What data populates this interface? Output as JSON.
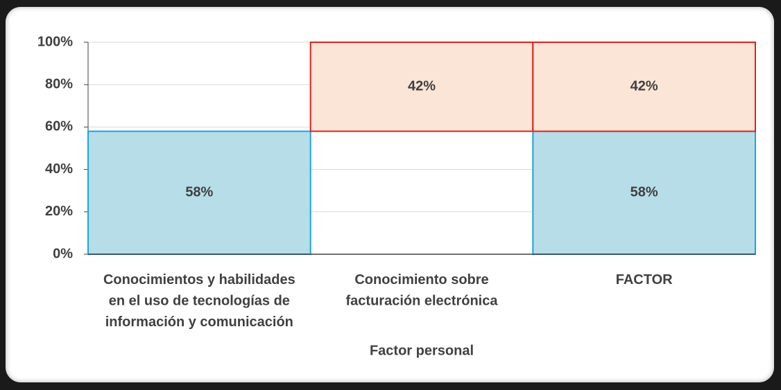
{
  "chart_data": {
    "type": "waterfall",
    "categories": [
      "Conocimientos y habilidades\nen el uso de tecnologías de\ninformación y comunicación",
      "Conocimiento sobre\nfacturación electrónica",
      "FACTOR"
    ],
    "series": [
      {
        "color": "#b7dde8",
        "stroke": "#1aa3e0",
        "values": [
          58,
          null,
          58
        ],
        "value_labels": [
          "58%",
          null,
          "58%"
        ]
      },
      {
        "color": "#fbe5d6",
        "stroke": "#e0201e",
        "values": [
          null,
          42,
          42
        ],
        "value_labels": [
          null,
          "42%",
          "42%"
        ]
      }
    ],
    "x_label": "Factor personal",
    "ylim": [
      0,
      100
    ],
    "yticks": [
      {
        "value": 0,
        "label": "0%"
      },
      {
        "value": 20,
        "label": "20%"
      },
      {
        "value": 40,
        "label": "40%"
      },
      {
        "value": 60,
        "label": "60%"
      },
      {
        "value": 80,
        "label": "80%"
      },
      {
        "value": 100,
        "label": "100%"
      }
    ],
    "grid": true
  }
}
